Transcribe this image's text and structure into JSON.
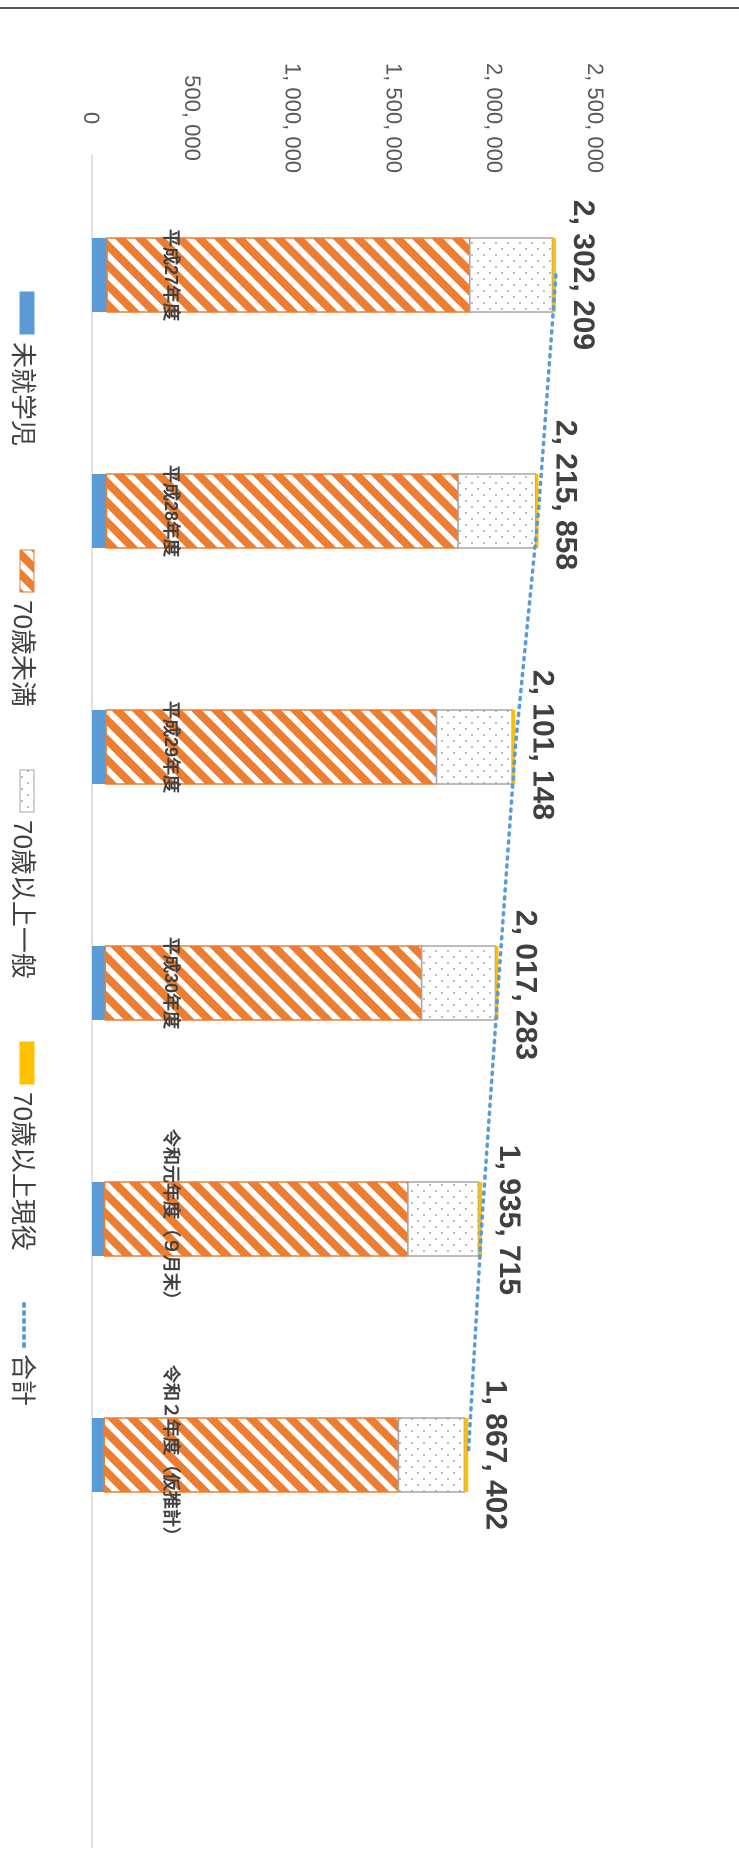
{
  "chart_data": {
    "type": "bar",
    "stacked": true,
    "orientation": "rotated-90-clockwise",
    "categories": [
      "平成27年度",
      "平成28年度",
      "平成29年度",
      "平成30年度",
      "令和元年度（９月末）",
      "令和２年度（仮推計）"
    ],
    "series": [
      {
        "name": "未就学児",
        "color": "#5b9bd5",
        "pattern": "solid",
        "values": [
          75000,
          72000,
          70000,
          66000,
          63000,
          61000
        ]
      },
      {
        "name": "70歳未満",
        "color": "#ed7d31",
        "pattern": "diagonal-stripes",
        "values": [
          1800000,
          1745000,
          1640000,
          1570000,
          1505000,
          1460000
        ]
      },
      {
        "name": "70歳以上一般",
        "color": "#a5a5a5",
        "pattern": "dots",
        "values": [
          410000,
          385000,
          375000,
          366000,
          350000,
          327000
        ]
      },
      {
        "name": "70歳以上現役",
        "color": "#ffc000",
        "pattern": "solid",
        "values": [
          17209,
          13858,
          16148,
          15283,
          17715,
          19402
        ]
      },
      {
        "name": "合計",
        "color": "#5b9bd5",
        "type": "line",
        "line_style": "dotted",
        "values": [
          2302209,
          2215858,
          2101148,
          2017283,
          1935715,
          1867402
        ]
      }
    ],
    "total_labels": [
      "2, 302, 209",
      "2, 215, 858",
      "2, 101, 148",
      "2, 017, 283",
      "1, 935, 715",
      "1, 867, 402"
    ],
    "value_axis": {
      "min": 0,
      "max": 2500000,
      "ticks": [
        0,
        500000,
        1000000,
        1500000,
        2000000,
        2500000
      ],
      "tick_labels": [
        "0",
        "500, 000",
        "1, 000, 000",
        "1, 500, 000",
        "2, 000, 000",
        "2, 500, 000"
      ]
    },
    "grid": false,
    "legend_position": "bottom",
    "title": "",
    "xlabel": "",
    "ylabel": ""
  }
}
